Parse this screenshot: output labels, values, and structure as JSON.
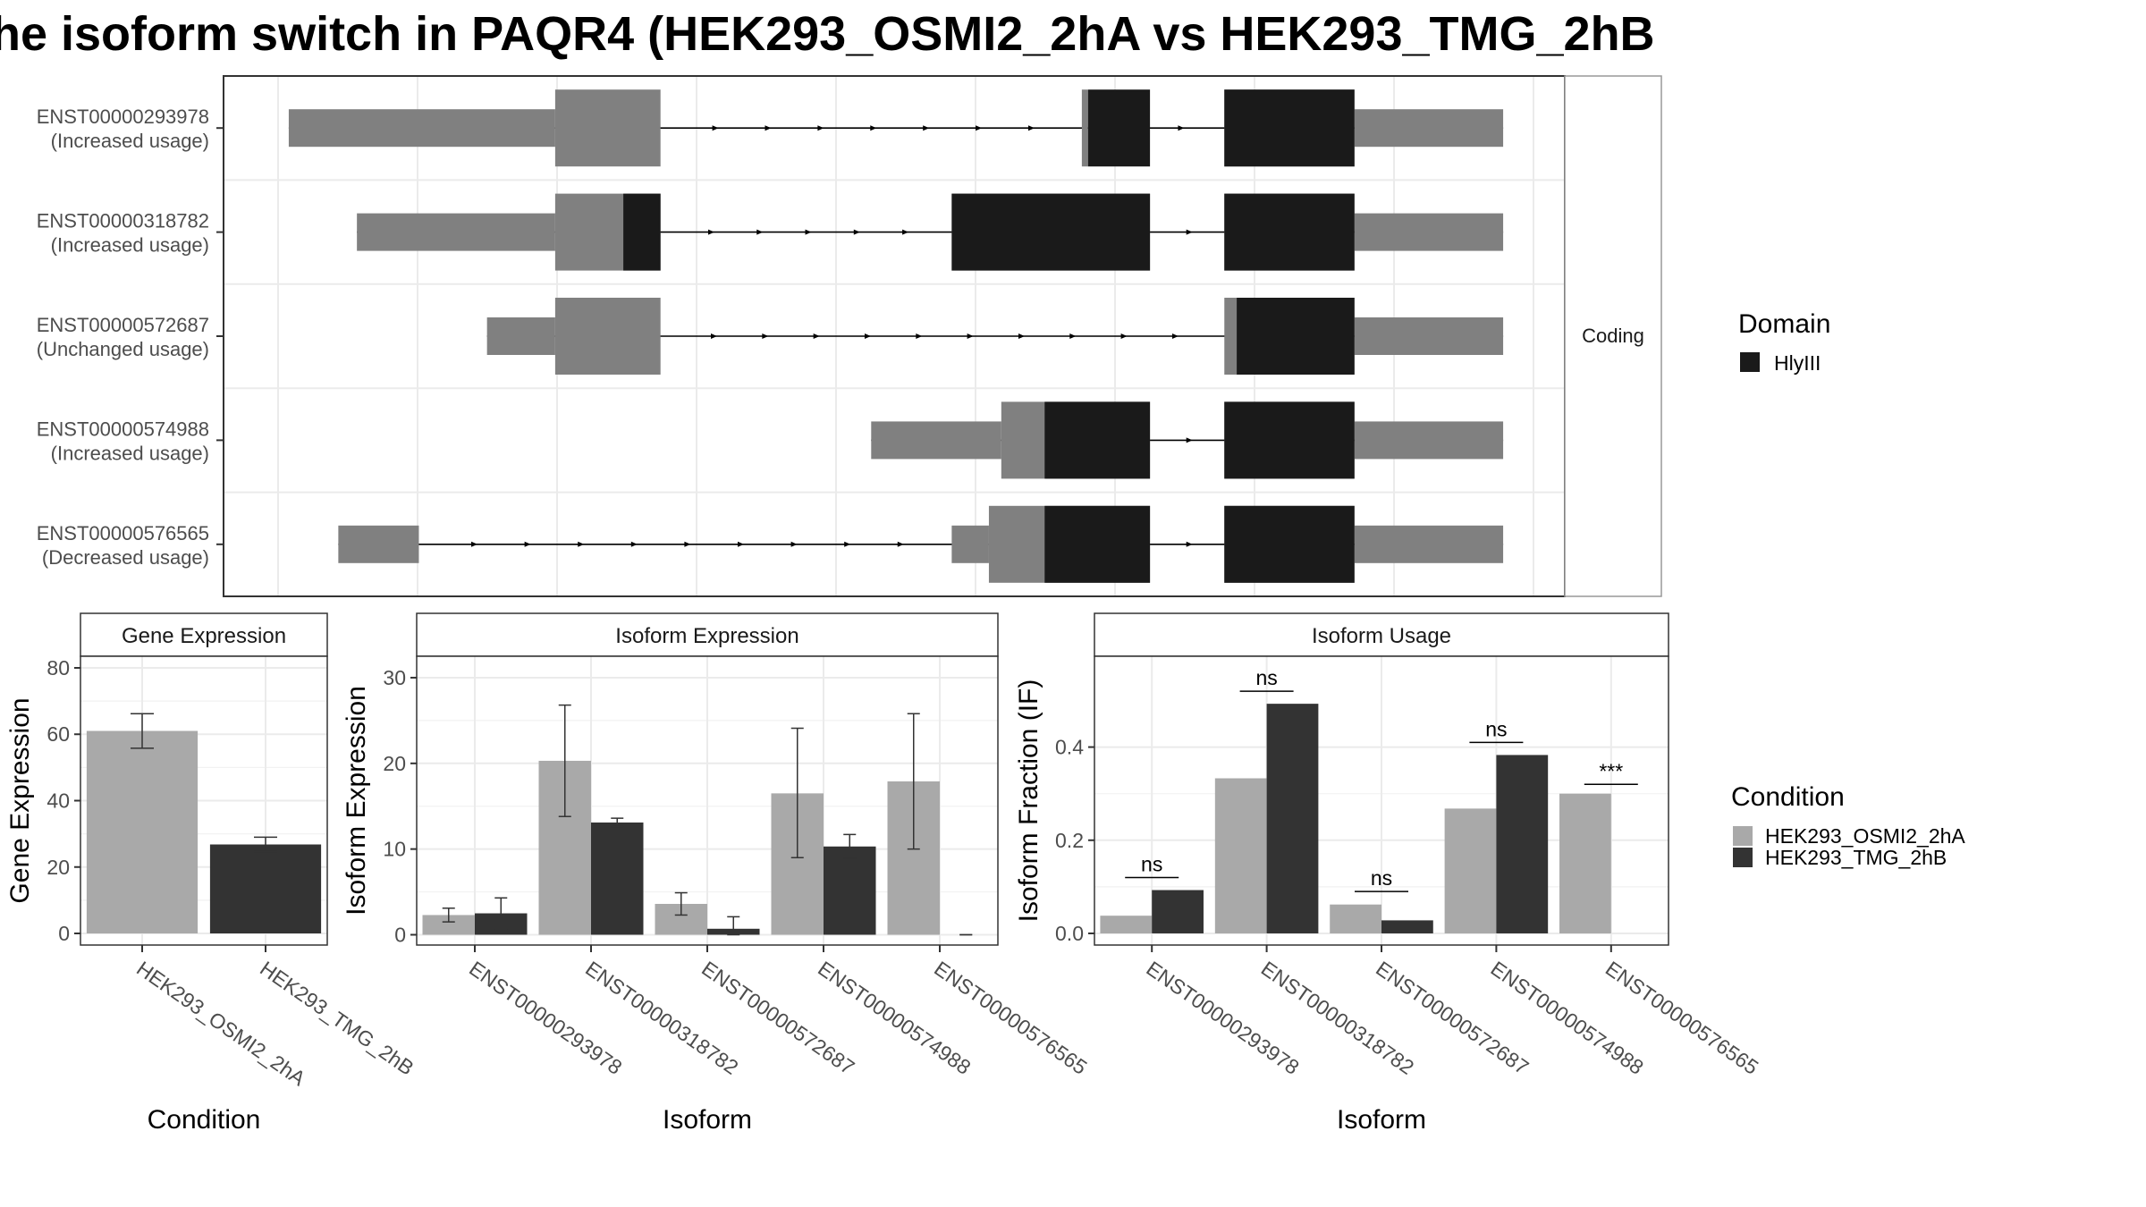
{
  "title": "he isoform switch in PAQR4 (HEK293_OSMI2_2hA vs HEK293_TMG_2hB",
  "colors": {
    "exon": "#808080",
    "domain": "#1a1a1a",
    "cond1": "#a9a9a9",
    "cond2": "#333333",
    "grid": "#ebebeb"
  },
  "chart_data": [
    {
      "type": "gene-structure",
      "strip_label": "Coding",
      "x_domain": [
        0,
        100
      ],
      "intron_color": "#000000",
      "transcripts": [
        {
          "id": "ENST00000293978",
          "usage": "(Increased usage)",
          "utr": [
            [
              0.5,
              22
            ],
            [
              86.5,
              98.5
            ]
          ],
          "cds": [
            [
              22,
              30.5
            ],
            [
              64.5,
              65
            ],
            [
              76,
              86.5
            ]
          ],
          "domain": [
            [
              65,
              70
            ],
            [
              76,
              86.5
            ]
          ]
        },
        {
          "id": "ENST00000318782",
          "usage": "(Increased usage)",
          "utr": [
            [
              6,
              22
            ],
            [
              86.5,
              98.5
            ]
          ],
          "cds": [
            [
              22,
              30.5
            ],
            [
              54,
              70
            ],
            [
              76,
              86.5
            ]
          ],
          "domain": [
            [
              27.5,
              30.5
            ],
            [
              54,
              70
            ],
            [
              76,
              86.5
            ]
          ]
        },
        {
          "id": "ENST00000572687",
          "usage": "(Unchanged usage)",
          "utr": [
            [
              16.5,
              22
            ],
            [
              86.5,
              98.5
            ]
          ],
          "cds": [
            [
              22,
              30.5
            ],
            [
              76,
              86.5
            ]
          ],
          "domain": [
            [
              77,
              86.5
            ]
          ]
        },
        {
          "id": "ENST00000574988",
          "usage": "(Increased usage)",
          "utr": [
            [
              47.5,
              58
            ],
            [
              86.5,
              98.5
            ]
          ],
          "cds": [
            [
              58,
              70
            ],
            [
              76,
              86.5
            ]
          ],
          "domain": [
            [
              61.5,
              70
            ],
            [
              76,
              86.5
            ]
          ]
        },
        {
          "id": "ENST00000576565",
          "usage": "(Decreased usage)",
          "utr": [
            [
              4.5,
              11
            ],
            [
              54,
              57
            ],
            [
              86.5,
              98.5
            ]
          ],
          "cds": [
            [
              57,
              70
            ],
            [
              76,
              86.5
            ]
          ],
          "domain": [
            [
              61.5,
              70
            ],
            [
              76,
              86.5
            ]
          ]
        }
      ],
      "legend": {
        "title": "Domain",
        "items": [
          {
            "label": "HlyIII",
            "color": "#1a1a1a"
          }
        ]
      }
    },
    {
      "type": "bar",
      "strip": "Gene Expression",
      "ylabel": "Gene Expression",
      "xlabel": "Condition",
      "ylim": [
        -3.5,
        83.5
      ],
      "yticks": [
        0,
        20,
        40,
        60,
        80
      ],
      "categories": [
        "HEK293_OSMI2_2hA",
        "HEK293_TMG_2hB"
      ],
      "values": [
        61.0,
        26.8
      ],
      "errors": [
        [
          55.8,
          66.2
        ],
        [
          24.6,
          29.0
        ]
      ]
    },
    {
      "type": "bar",
      "strip": "Isoform Expression",
      "ylabel": "Isoform Expression",
      "xlabel": "Isoform",
      "ylim": [
        -1.2,
        32.5
      ],
      "yticks": [
        0,
        10,
        20,
        30
      ],
      "categories": [
        "ENST00000293978",
        "ENST00000318782",
        "ENST00000572687",
        "ENST00000574988",
        "ENST00000576565"
      ],
      "series": [
        {
          "name": "HEK293_OSMI2_2hA",
          "values": [
            2.3,
            20.3,
            3.6,
            16.5,
            17.9
          ],
          "errors": [
            [
              1.5,
              3.1
            ],
            [
              13.8,
              26.8
            ],
            [
              2.3,
              4.9
            ],
            [
              9.0,
              24.1
            ],
            [
              10.0,
              25.8
            ]
          ]
        },
        {
          "name": "HEK293_TMG_2hB",
          "values": [
            2.5,
            13.1,
            0.7,
            10.3,
            0.0
          ],
          "errors": [
            [
              0.6,
              4.3
            ],
            [
              12.6,
              13.6
            ],
            [
              0.0,
              2.1
            ],
            [
              8.9,
              11.7
            ],
            [
              0.0,
              0.0
            ]
          ]
        }
      ]
    },
    {
      "type": "bar",
      "strip": "Isoform Usage",
      "ylabel": "Isoform Fraction (IF)",
      "xlabel": "Isoform",
      "ylim": [
        -0.025,
        0.595
      ],
      "yticks": [
        0.0,
        0.2,
        0.4
      ],
      "ytick_labels": [
        "0.0",
        "0.2",
        "0.4"
      ],
      "categories": [
        "ENST00000293978",
        "ENST00000318782",
        "ENST00000572687",
        "ENST00000574988",
        "ENST00000576565"
      ],
      "series": [
        {
          "name": "HEK293_OSMI2_2hA",
          "values": [
            0.038,
            0.333,
            0.062,
            0.268,
            0.3
          ]
        },
        {
          "name": "HEK293_TMG_2hB",
          "values": [
            0.093,
            0.493,
            0.028,
            0.383,
            0.0
          ]
        }
      ],
      "significance": [
        {
          "label": "ns",
          "y": 0.12
        },
        {
          "label": "ns",
          "y": 0.52
        },
        {
          "label": "ns",
          "y": 0.09
        },
        {
          "label": "ns",
          "y": 0.41
        },
        {
          "label": "***",
          "y": 0.32
        }
      ]
    }
  ],
  "legend_condition": {
    "title": "Condition",
    "items": [
      {
        "label": "HEK293_OSMI2_2hA",
        "color": "#a9a9a9"
      },
      {
        "label": "HEK293_TMG_2hB",
        "color": "#333333"
      }
    ]
  }
}
